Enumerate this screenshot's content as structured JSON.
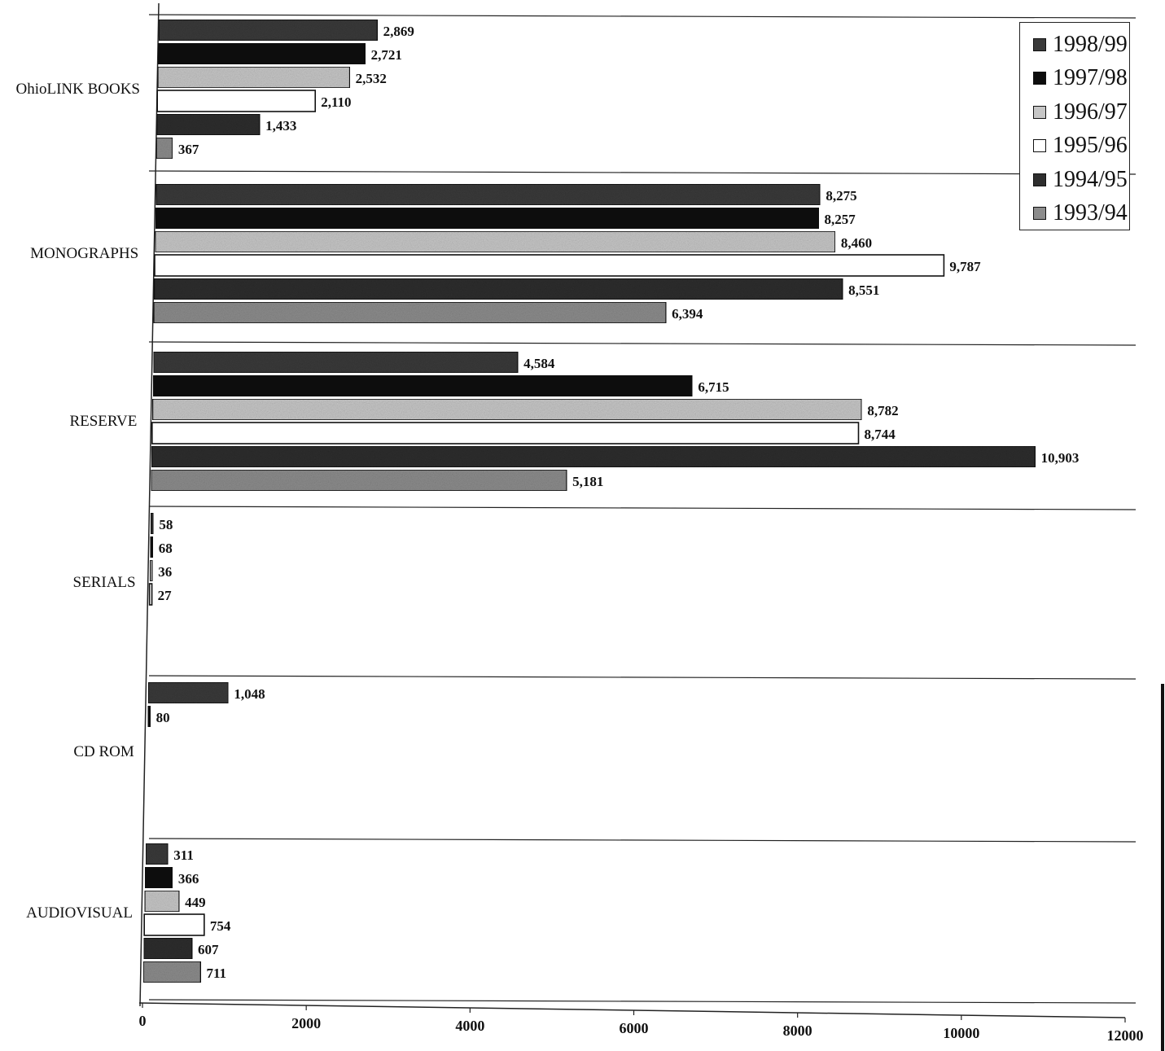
{
  "chart_data": {
    "type": "bar",
    "orientation": "horizontal",
    "title": "",
    "xlabel": "",
    "ylabel": "",
    "xlim": [
      0,
      12000
    ],
    "xticks": [
      "0",
      "2000",
      "4000",
      "6000",
      "8000",
      "10000",
      "12000"
    ],
    "grid": "horizontal separators between categories",
    "legend_placement": "top-right",
    "categories": [
      "OhioLINK BOOKS",
      "MONOGRAPHS",
      "RESERVE",
      "SERIALS",
      "CD ROM",
      "AUDIOVISUAL"
    ],
    "series": [
      {
        "name": "1998/99",
        "color": "#3a3a3a",
        "values": [
          2869,
          8275,
          4584,
          58,
          1048,
          311
        ],
        "labels": [
          "2,869",
          "8,275",
          "4,584",
          "58",
          "1,048",
          "311"
        ]
      },
      {
        "name": "1997/98",
        "color": "#0d0d0d",
        "values": [
          2721,
          8257,
          6715,
          68,
          80,
          366
        ],
        "labels": [
          "2,721",
          "8,257",
          "6,715",
          "68",
          "80",
          "366"
        ]
      },
      {
        "name": "1996/97",
        "color": "#c6c6c6",
        "values": [
          2532,
          8460,
          8782,
          36,
          null,
          449
        ],
        "labels": [
          "2,532",
          "8,460",
          "8,782",
          "36",
          "",
          "449"
        ]
      },
      {
        "name": "1995/96",
        "color": "#ffffff",
        "values": [
          2110,
          9787,
          8744,
          27,
          null,
          754
        ],
        "labels": [
          "2,110",
          "9,787",
          "8,744",
          "27",
          "",
          "754"
        ]
      },
      {
        "name": "1994/95",
        "color": "#2e2e2e",
        "values": [
          1433,
          8551,
          10903,
          null,
          null,
          607
        ],
        "labels": [
          "1,433",
          "8,551",
          "10,903",
          "",
          "",
          "607"
        ]
      },
      {
        "name": "1993/94",
        "color": "#8c8c8c",
        "values": [
          367,
          6394,
          5181,
          null,
          null,
          711
        ],
        "labels": [
          "367",
          "6,394",
          "5,181",
          "",
          "",
          "711"
        ]
      }
    ]
  }
}
